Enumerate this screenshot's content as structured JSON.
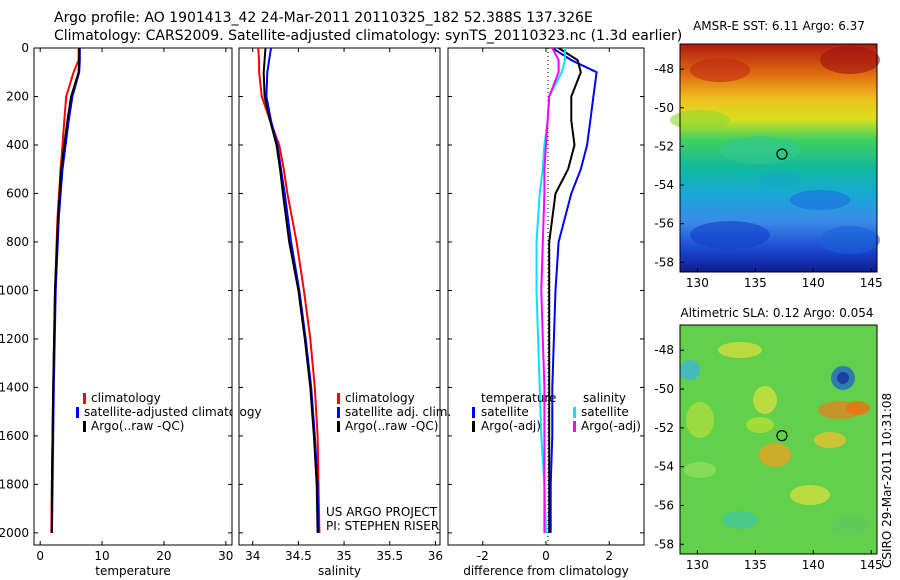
{
  "header": {
    "line1": "Argo profile: AO 1901413_42 24-Mar-2011 20110325_182 52.388S 137.326E",
    "line2": "Climatology: CARS2009. Satellite-adjusted climatology: synTS_20110323.nc (1.3d earlier)"
  },
  "footer": {
    "project": "US ARGO PROJECT",
    "pi": "PI: STEPHEN RISER",
    "stamp": "CSIRO 29-Mar-2011 10:31:08"
  },
  "colors": {
    "climatology": "#ff0000",
    "satellite": "#0000ff",
    "argo": "#000000",
    "cyan": "#00e5ff",
    "magenta": "#ff00ff"
  },
  "chart_data": [
    {
      "type": "line",
      "xlabel": "temperature",
      "ylabel": "",
      "xlim": [
        -1,
        31
      ],
      "ylim": [
        2050,
        0
      ],
      "xticks": [
        0,
        10,
        20,
        30
      ],
      "yticks": [
        0,
        200,
        400,
        600,
        800,
        1000,
        1200,
        1400,
        1600,
        1800,
        2000
      ],
      "y": [
        0,
        50,
        100,
        200,
        300,
        400,
        500,
        700,
        1000,
        1400,
        1800,
        2000
      ],
      "series": [
        {
          "name": "climatology",
          "color": "red",
          "values": [
            6.2,
            6.2,
            5.4,
            4.2,
            3.9,
            3.6,
            3.3,
            2.8,
            2.4,
            2.1,
            1.9,
            1.8
          ]
        },
        {
          "name": "satellite-adjusted climatology",
          "color": "blue",
          "values": [
            6.4,
            6.4,
            6.3,
            5.2,
            4.6,
            4.1,
            3.6,
            3.0,
            2.5,
            2.2,
            2.0,
            1.9
          ]
        },
        {
          "name": "Argo(..raw -QC)",
          "color": "black",
          "values": [
            6.3,
            6.3,
            6.2,
            5.0,
            4.4,
            3.9,
            3.4,
            2.9,
            2.4,
            2.1,
            1.9,
            1.9
          ]
        }
      ],
      "legend_position": "lower-right"
    },
    {
      "type": "line",
      "xlabel": "salinity",
      "xlim": [
        33.85,
        36.05
      ],
      "ylim": [
        2050,
        0
      ],
      "xticks": [
        34,
        34.5,
        35,
        35.5,
        36
      ],
      "y": [
        0,
        50,
        100,
        200,
        300,
        400,
        500,
        600,
        800,
        1000,
        1200,
        1400,
        1600,
        1800,
        2000
      ],
      "series": [
        {
          "name": "climatology",
          "color": "red",
          "values": [
            34.06,
            34.07,
            34.07,
            34.1,
            34.19,
            34.29,
            34.34,
            34.38,
            34.48,
            34.56,
            34.63,
            34.68,
            34.71,
            34.72,
            34.73
          ]
        },
        {
          "name": "satellite adj. clim.",
          "color": "blue",
          "values": [
            34.2,
            34.18,
            34.16,
            34.15,
            34.2,
            34.27,
            34.31,
            34.35,
            34.42,
            34.51,
            34.58,
            34.64,
            34.68,
            34.71,
            34.72
          ]
        },
        {
          "name": "Argo(..raw -QC)",
          "color": "black",
          "values": [
            34.14,
            34.13,
            34.12,
            34.13,
            34.19,
            34.26,
            34.3,
            34.33,
            34.4,
            34.5,
            34.57,
            34.63,
            34.67,
            34.7,
            34.71
          ]
        }
      ],
      "legend_position": "lower-right"
    },
    {
      "type": "line",
      "xlabel": "difference from climatology",
      "xlim": [
        -3.1,
        3.1
      ],
      "ylim": [
        2050,
        0
      ],
      "xticks": [
        -2,
        0,
        2
      ],
      "y": [
        0,
        50,
        100,
        200,
        300,
        400,
        500,
        600,
        800,
        1000,
        1200,
        1400,
        1600,
        1800,
        2000
      ],
      "series": [
        {
          "name": "temperature satellite",
          "color": "blue",
          "values": [
            0.2,
            0.8,
            1.6,
            1.5,
            1.4,
            1.3,
            1.1,
            0.8,
            0.4,
            0.3,
            0.25,
            0.2,
            0.2,
            0.15,
            0.15
          ]
        },
        {
          "name": "temperature Argo(-adj)",
          "color": "black",
          "values": [
            0.4,
            1.0,
            1.1,
            0.8,
            0.8,
            0.9,
            0.7,
            0.3,
            0.1,
            0.1,
            0.1,
            0.1,
            0.1,
            0.1,
            0.1
          ]
        },
        {
          "name": "salinity satellite",
          "color": "cyan",
          "values": [
            0.6,
            0.6,
            0.5,
            0.1,
            0.05,
            -0.05,
            -0.1,
            -0.2,
            -0.3,
            -0.3,
            -0.25,
            -0.2,
            -0.15,
            -0.05,
            0.0
          ]
        },
        {
          "name": "salinity Argo(-adj)",
          "color": "magenta",
          "values": [
            0.2,
            0.4,
            0.4,
            0.1,
            0.05,
            0.0,
            -0.05,
            -0.05,
            -0.1,
            -0.15,
            -0.1,
            -0.05,
            -0.05,
            -0.05,
            -0.05
          ]
        }
      ],
      "legend_labels": {
        "temperature": "temperature",
        "salinity": "salinity",
        "satellite": "satellite",
        "argo": "Argo(-adj)"
      }
    },
    {
      "type": "heatmap",
      "title": "AMSR-E SST: 6.11 Argo: 6.37",
      "xlim": [
        128.5,
        145.5
      ],
      "ylim": [
        -58.5,
        -46.7
      ],
      "xticks": [
        130,
        135,
        140,
        145
      ],
      "yticks": [
        -48,
        -50,
        -52,
        -54,
        -56,
        -58
      ],
      "marker": {
        "lon": 137.3,
        "lat": -52.4
      }
    },
    {
      "type": "heatmap",
      "title": "Altimetric SLA: 0.12 Argo: 0.054",
      "xlim": [
        128.5,
        145.5
      ],
      "ylim": [
        -58.5,
        -46.7
      ],
      "xticks": [
        130,
        135,
        140,
        145
      ],
      "yticks": [
        -48,
        -50,
        -52,
        -54,
        -56,
        -58
      ],
      "marker": {
        "lon": 137.3,
        "lat": -52.4
      }
    }
  ]
}
